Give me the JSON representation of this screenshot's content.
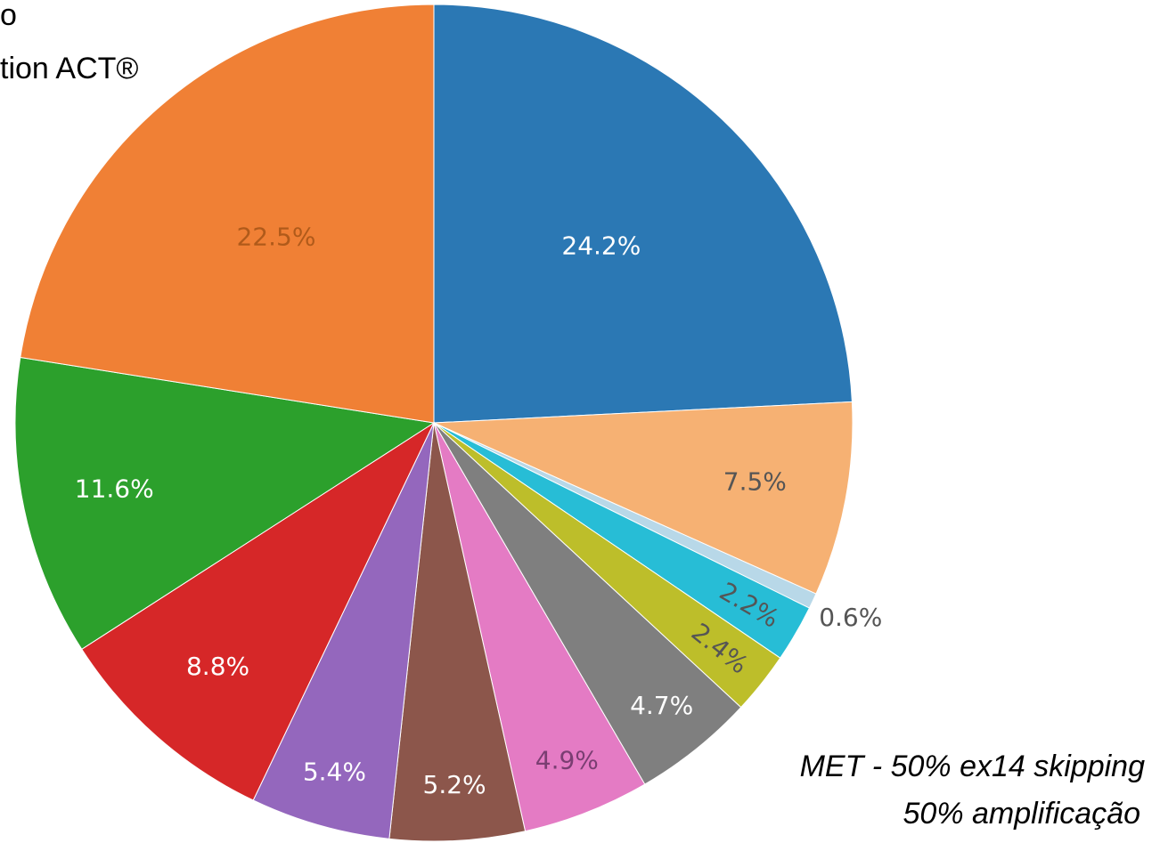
{
  "chart_data": {
    "type": "pie",
    "texts": [
      "o",
      "tion ACT®"
    ],
    "annotations": [
      "MET  - 50% ex14 skipping",
      "50% amplificação"
    ],
    "values": [
      24.2,
      7.5,
      0.6,
      2.2,
      2.4,
      4.7,
      4.9,
      5.2,
      5.4,
      8.8,
      11.6,
      22.5
    ],
    "value_labels": [
      "24.2%",
      "7.5%",
      "0.6%",
      "2.2%",
      "2.4%",
      "4.7%",
      "4.9%",
      "5.2%",
      "5.4%",
      "8.8%",
      "11.6%",
      "22.5%"
    ],
    "colors": [
      "#2b78b4",
      "#f6b173",
      "#b8d8e8",
      "#27bdd6",
      "#bdbe2a",
      "#7f7f7f",
      "#e47bc4",
      "#8c564b",
      "#9467bd",
      "#d62728",
      "#2ca02c",
      "#f08035"
    ],
    "label_colors": [
      "#ffffff",
      "#555555",
      "#555555",
      "#555555",
      "#555555",
      "#ffffff",
      "#7a3e72",
      "#ffffff",
      "#ffffff",
      "#ffffff",
      "#ffffff",
      "#b05a1a"
    ]
  }
}
